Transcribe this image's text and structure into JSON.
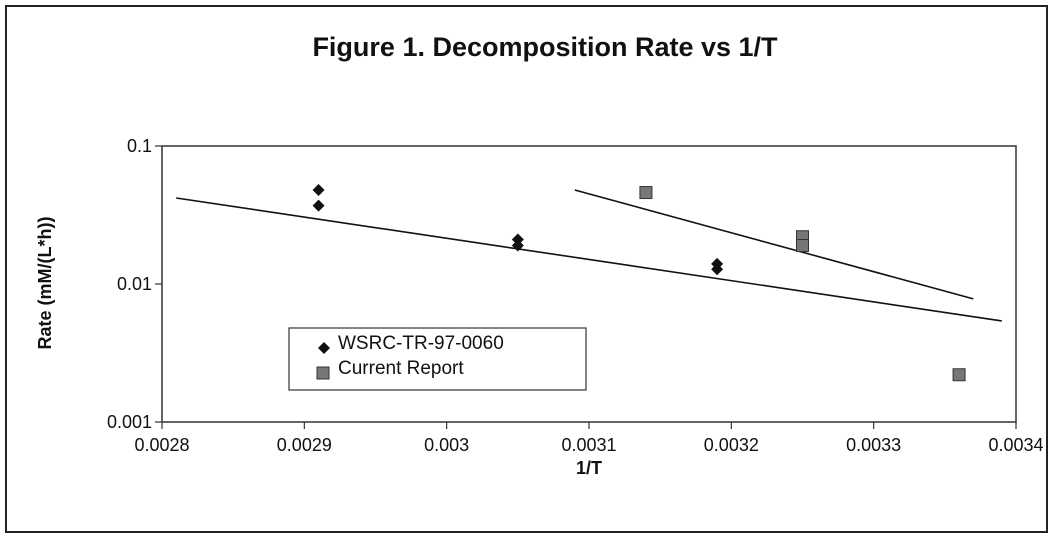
{
  "chart_data": {
    "type": "scatter",
    "title": "Figure 1. Decomposition Rate vs 1/T",
    "xlabel": "1/T",
    "ylabel": "Rate (mM/(L*h))",
    "xlim": [
      0.0028,
      0.0034
    ],
    "ylim": [
      0.001,
      0.1
    ],
    "y_scale": "log",
    "x_ticks": [
      {
        "value": 0.0028,
        "label": "0.0028"
      },
      {
        "value": 0.0029,
        "label": "0.0029"
      },
      {
        "value": 0.003,
        "label": "0.003"
      },
      {
        "value": 0.0031,
        "label": "0.0031"
      },
      {
        "value": 0.0032,
        "label": "0.0032"
      },
      {
        "value": 0.0033,
        "label": "0.0033"
      },
      {
        "value": 0.0034,
        "label": "0.0034"
      }
    ],
    "y_ticks": [
      {
        "value": 0.1,
        "label": "0.1"
      },
      {
        "value": 0.01,
        "label": "0.01"
      },
      {
        "value": 0.001,
        "label": "0.001"
      }
    ],
    "grid": false,
    "legend_position": "lower-left",
    "series": [
      {
        "name": "WSRC-TR-97-0060",
        "marker": "diamond",
        "color": "#111111",
        "points": [
          [
            0.00291,
            0.048
          ],
          [
            0.00291,
            0.037
          ],
          [
            0.00305,
            0.021
          ],
          [
            0.00305,
            0.019
          ],
          [
            0.00319,
            0.014
          ],
          [
            0.00319,
            0.0128
          ]
        ],
        "trendline": [
          [
            0.00281,
            0.042
          ],
          [
            0.00339,
            0.0054
          ]
        ]
      },
      {
        "name": "Current Report",
        "marker": "square",
        "color": "#777777",
        "points": [
          [
            0.00314,
            0.046
          ],
          [
            0.00325,
            0.022
          ],
          [
            0.00325,
            0.019
          ],
          [
            0.00336,
            0.0022
          ]
        ],
        "trendline": [
          [
            0.00309,
            0.048
          ],
          [
            0.00337,
            0.0078
          ]
        ]
      }
    ]
  }
}
